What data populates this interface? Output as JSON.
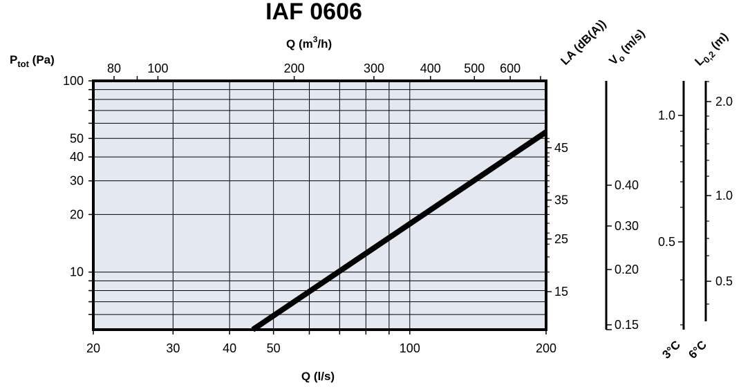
{
  "chart_data": {
    "type": "line",
    "title": "IAF 0606",
    "xlabel_bottom": "Q (l/s)",
    "xlabel_top": "Q (m3/h)",
    "ylabel": "Ptot (Pa)",
    "x_scale": "log",
    "y_scale": "log",
    "xlim": [
      20,
      200
    ],
    "ylim": [
      5,
      100
    ],
    "x_ticks_bottom": [
      20,
      30,
      40,
      50,
      100,
      200
    ],
    "x_ticks_top": [
      80,
      100,
      200,
      300,
      400,
      500,
      600
    ],
    "y_ticks": [
      10,
      20,
      30,
      40,
      50,
      100
    ],
    "series": [
      {
        "x": [
          45,
          200
        ],
        "y": [
          5,
          54
        ]
      }
    ],
    "right_scales": [
      {
        "label": "LA (dB(A))",
        "ticks": [
          15,
          25,
          35,
          45
        ],
        "tick_pressures": [
          7.9,
          14.9,
          23.8,
          44.7
        ]
      },
      {
        "label": "Vo (m/s)",
        "ticks": [
          0.15,
          0.2,
          0.3,
          0.4
        ],
        "tick_flows": [
          45.1,
          60.3,
          90.1,
          120.8
        ]
      },
      {
        "label": "L0,2 (m)",
        "sub_labels": [
          "3°C",
          "6°C"
        ],
        "left_ticks": [
          0.5,
          1.0
        ],
        "left_tick_flows": [
          94.1,
          185
        ],
        "right_ticks": [
          0.5,
          1.0,
          2.0
        ],
        "right_tick_flows": [
          52,
          103,
          196
        ]
      }
    ]
  },
  "labels": {
    "title": "IAF 0606",
    "q_top_main": "Q (m",
    "q_top_sup": "3",
    "q_top_end": "/h)",
    "q_bottom": "Q (l/s)",
    "p_main": "P",
    "p_sub": "tot",
    "p_end": " (Pa)",
    "la": "LA (dB(A))",
    "vo_main": "V",
    "vo_sub": "o",
    "vo_end": " (m/s)",
    "l_main": "L",
    "l_sub": "0,2",
    "l_end": " (m)",
    "three_c": "3°C",
    "six_c": "6°C"
  },
  "tick_labels": {
    "x_bottom": [
      "20",
      "30",
      "40",
      "50",
      "100",
      "200"
    ],
    "x_top": [
      "80",
      "100",
      "200",
      "300",
      "400",
      "500",
      "600"
    ],
    "y": [
      "10",
      "20",
      "30",
      "40",
      "50",
      "100"
    ],
    "la": [
      "15",
      "25",
      "35",
      "45"
    ],
    "vo": [
      "0.15",
      "0.20",
      "0.30",
      "0.40"
    ],
    "l_left": [
      "0.5",
      "1.0"
    ],
    "l_right": [
      "0.5",
      "1.0",
      "2.0"
    ]
  }
}
